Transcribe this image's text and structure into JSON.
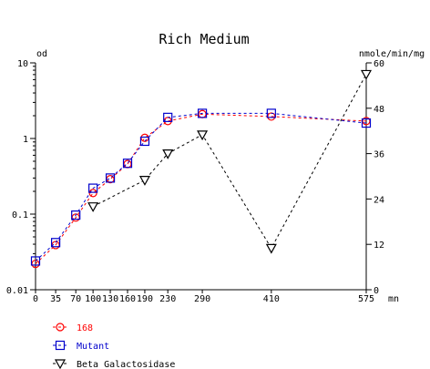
{
  "chart_data": {
    "type": "line",
    "title": "Rich Medium",
    "xlabel": "mn",
    "ylabel_left": "od",
    "ylabel_right": "nmole/min/mg",
    "x": [
      0,
      35,
      70,
      100,
      130,
      160,
      190,
      230,
      290,
      410,
      575
    ],
    "x_tick_labels": [
      "0",
      "35",
      "70",
      "100",
      "130",
      "160",
      "190",
      "230",
      "290",
      "410",
      "575"
    ],
    "xlim": [
      0,
      575
    ],
    "ylim_left": [
      0.01,
      10
    ],
    "y_left_scale": "log",
    "y_left_tick_labels": [
      "0.01",
      "0.1",
      "1",
      "10"
    ],
    "ylim_right": [
      0,
      60
    ],
    "y_right_tick_labels": [
      "0",
      "12",
      "24",
      "36",
      "48",
      "60"
    ],
    "grid": false,
    "legend_position": "bottom-left",
    "series": [
      {
        "name": "168",
        "axis": "left",
        "color": "#ff0000",
        "marker": "circle",
        "points": [
          [
            0,
            0.022
          ],
          [
            35,
            0.039
          ],
          [
            70,
            0.09
          ],
          [
            100,
            0.19
          ],
          [
            130,
            0.29
          ],
          [
            160,
            0.46
          ],
          [
            190,
            1.02
          ],
          [
            230,
            1.7
          ],
          [
            290,
            2.1
          ],
          [
            410,
            1.95
          ],
          [
            575,
            1.7
          ]
        ]
      },
      {
        "name": "Mutant",
        "axis": "left",
        "color": "#0000cc",
        "marker": "square",
        "points": [
          [
            0,
            0.024
          ],
          [
            35,
            0.042
          ],
          [
            70,
            0.097
          ],
          [
            100,
            0.22
          ],
          [
            130,
            0.3
          ],
          [
            160,
            0.47
          ],
          [
            190,
            0.92
          ],
          [
            230,
            1.9
          ],
          [
            290,
            2.15
          ],
          [
            410,
            2.15
          ],
          [
            575,
            1.6
          ]
        ]
      },
      {
        "name": "Beta Galactosidase",
        "axis": "right",
        "color": "#000000",
        "marker": "triangle-down",
        "points": [
          [
            100,
            22
          ],
          [
            190,
            29
          ],
          [
            230,
            36
          ],
          [
            290,
            41
          ],
          [
            410,
            11
          ],
          [
            575,
            57
          ]
        ]
      }
    ]
  }
}
